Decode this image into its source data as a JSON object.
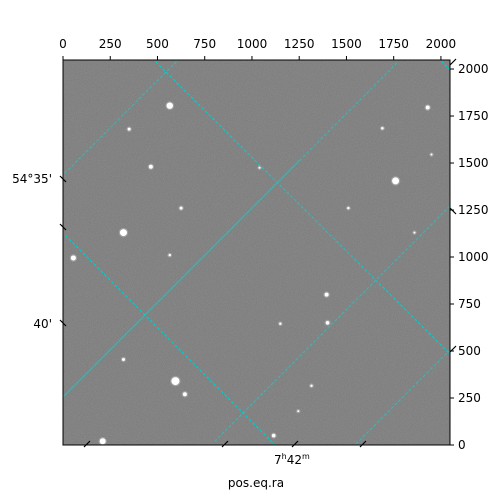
{
  "chart_data": {
    "type": "image",
    "title": "",
    "xlabel": "pos.eq.ra",
    "ylabel": "",
    "pixel_axes": {
      "x_ticks": [
        0,
        250,
        500,
        750,
        1000,
        1250,
        1500,
        1750,
        2000
      ],
      "y_ticks": [
        0,
        250,
        500,
        750,
        1000,
        1250,
        1500,
        1750,
        2000
      ],
      "xlim": [
        0,
        2048
      ],
      "ylim": [
        0,
        2048
      ]
    },
    "ra_tick_labels": [
      {
        "hours": "7",
        "minutes": "42",
        "h_sup": "h",
        "m_sup": "m"
      }
    ],
    "dec_tick_labels": [
      "54°35'",
      "40'"
    ],
    "grid": true,
    "grid_color": "#00d0d0",
    "image_background": "#777777",
    "colormap": "gray",
    "stars": [
      {
        "x": 565,
        "y": 1805,
        "r": 3.2
      },
      {
        "x": 350,
        "y": 1680,
        "r": 1.5
      },
      {
        "x": 1930,
        "y": 1795,
        "r": 2.0
      },
      {
        "x": 1690,
        "y": 1685,
        "r": 1.3
      },
      {
        "x": 465,
        "y": 1480,
        "r": 2.0
      },
      {
        "x": 1760,
        "y": 1405,
        "r": 3.5
      },
      {
        "x": 625,
        "y": 1260,
        "r": 1.5
      },
      {
        "x": 1510,
        "y": 1260,
        "r": 1.2
      },
      {
        "x": 1040,
        "y": 1475,
        "r": 1.0
      },
      {
        "x": 320,
        "y": 1130,
        "r": 3.5
      },
      {
        "x": 55,
        "y": 995,
        "r": 2.5
      },
      {
        "x": 565,
        "y": 1010,
        "r": 1.2
      },
      {
        "x": 1395,
        "y": 800,
        "r": 2.0
      },
      {
        "x": 1400,
        "y": 650,
        "r": 1.8
      },
      {
        "x": 1150,
        "y": 645,
        "r": 1.2
      },
      {
        "x": 320,
        "y": 455,
        "r": 1.5
      },
      {
        "x": 595,
        "y": 340,
        "r": 4.0
      },
      {
        "x": 645,
        "y": 270,
        "r": 2.0
      },
      {
        "x": 1315,
        "y": 315,
        "r": 1.2
      },
      {
        "x": 1115,
        "y": 50,
        "r": 1.8
      },
      {
        "x": 210,
        "y": 20,
        "r": 3.0
      },
      {
        "x": 1245,
        "y": 180,
        "r": 1.0
      },
      {
        "x": 1950,
        "y": 1545,
        "r": 1.0
      },
      {
        "x": 1860,
        "y": 1130,
        "r": 1.0
      }
    ]
  }
}
